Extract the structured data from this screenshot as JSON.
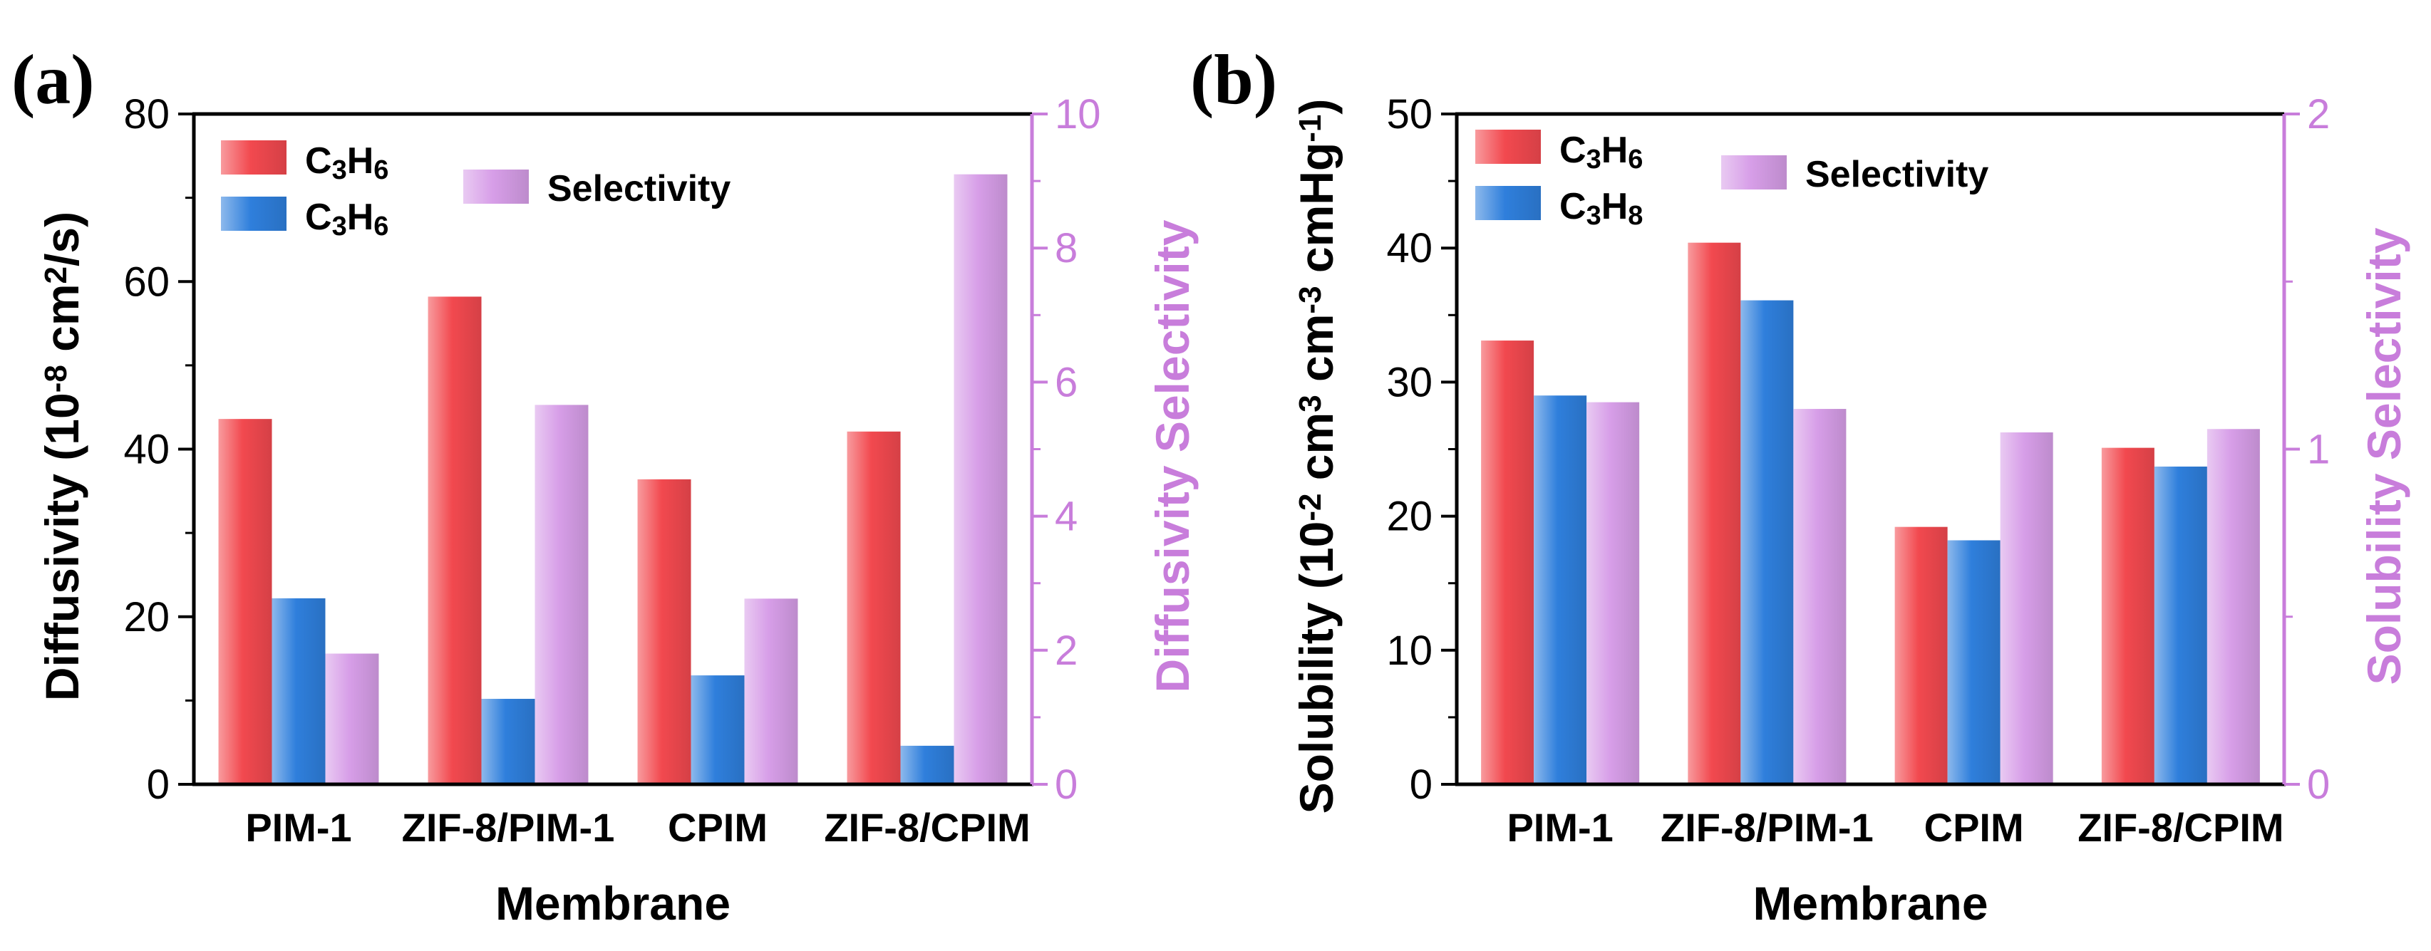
{
  "chart_data": [
    {
      "type": "bar",
      "panel_label": "(a)",
      "xlabel": "Membrane",
      "ylabel_parts": [
        "Diffusivity (10",
        "-8",
        " cm",
        "2",
        "/s)"
      ],
      "ylabel_right": "Diffusivity Selectivity",
      "categories": [
        "PIM-1",
        "ZIF-8/PIM-1",
        "CPIM",
        "ZIF-8/CPIM"
      ],
      "ylim": [
        0,
        80
      ],
      "yticks": [
        "0",
        "20",
        "40",
        "60",
        "80"
      ],
      "ylim_right": [
        0,
        10
      ],
      "yticks_right": [
        "0",
        "2",
        "4",
        "6",
        "8",
        "10"
      ],
      "series": [
        {
          "name": "C3H6",
          "name_parts": [
            "C",
            "3",
            "H",
            "6"
          ],
          "axis": "left",
          "color": "#f2494f",
          "values": [
            43.6,
            58.2,
            36.4,
            42.1
          ]
        },
        {
          "name": "C3H6",
          "name_parts": [
            "C",
            "3",
            "H",
            "6"
          ],
          "axis": "left",
          "color": "#2f7fdc",
          "values": [
            22.2,
            10.2,
            13.0,
            4.6
          ]
        },
        {
          "name": "Selectivity",
          "name_parts": [
            "Selectivity"
          ],
          "axis": "right",
          "color": "#d79ee8",
          "values": [
            1.95,
            5.66,
            2.77,
            9.1
          ]
        }
      ]
    },
    {
      "type": "bar",
      "panel_label": "(b)",
      "xlabel": "Membrane",
      "ylabel_parts": [
        "Solubility (10",
        "-2",
        " cm",
        "3",
        " cm",
        "-3",
        " cmHg",
        "-1",
        ")"
      ],
      "ylabel_right": "Solubility Selectivity",
      "categories": [
        "PIM-1",
        "ZIF-8/PIM-1",
        "CPIM",
        "ZIF-8/CPIM"
      ],
      "ylim": [
        0,
        50
      ],
      "yticks": [
        "0",
        "10",
        "20",
        "30",
        "40",
        "50"
      ],
      "ylim_right": [
        0,
        2
      ],
      "yticks_right": [
        "0",
        "1",
        "2"
      ],
      "series": [
        {
          "name": "C3H6",
          "name_parts": [
            "C",
            "3",
            "H",
            "6"
          ],
          "axis": "left",
          "color": "#f2494f",
          "values": [
            33.1,
            40.4,
            19.2,
            25.1
          ]
        },
        {
          "name": "C3H8",
          "name_parts": [
            "C",
            "3",
            "H",
            "8"
          ],
          "axis": "left",
          "color": "#2f7fdc",
          "values": [
            29.0,
            36.1,
            18.2,
            23.7
          ]
        },
        {
          "name": "Selectivity",
          "name_parts": [
            "Selectivity"
          ],
          "axis": "right",
          "color": "#d79ee8",
          "values": [
            1.14,
            1.12,
            1.05,
            1.06
          ]
        }
      ]
    }
  ]
}
